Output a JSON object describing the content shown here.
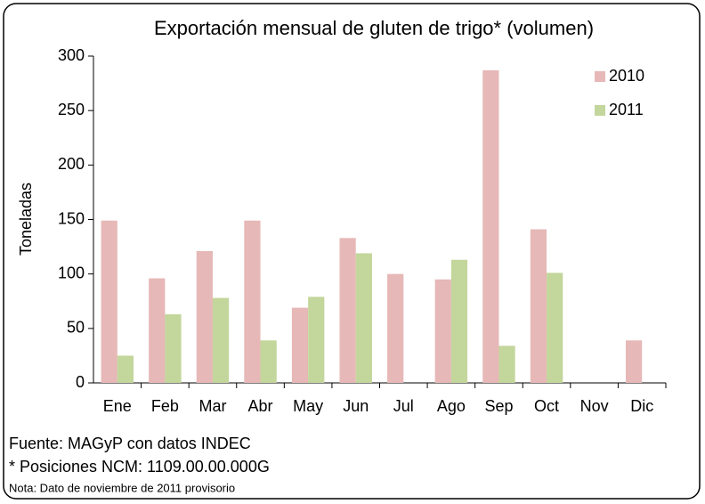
{
  "chart_data": {
    "type": "bar",
    "title": "Exportación mensual de gluten de trigo* (volumen)",
    "y_label": "Toneladas",
    "categories": [
      "Ene",
      "Feb",
      "Mar",
      "Abr",
      "May",
      "Jun",
      "Jul",
      "Ago",
      "Sep",
      "Oct",
      "Nov",
      "Dic"
    ],
    "series": [
      {
        "name": "2010",
        "color": "#e6b8b7",
        "values": [
          149,
          96,
          121,
          149,
          69,
          133,
          100,
          95,
          287,
          141,
          null,
          39
        ]
      },
      {
        "name": "2011",
        "color": "#c3d69b",
        "values": [
          25,
          63,
          78,
          39,
          79,
          119,
          null,
          113,
          34,
          101,
          null,
          null
        ]
      }
    ],
    "ylim": [
      0,
      300
    ],
    "yticks": [
      0,
      50,
      100,
      150,
      200,
      250,
      300
    ],
    "grid": false,
    "legend": "top-right",
    "notes": [
      "Fuente: MAGyP con datos INDEC",
      "* Posiciones NCM:  1109.00.00.000G",
      "Nota: Dato de noviembre de 2011 provisorio"
    ]
  }
}
